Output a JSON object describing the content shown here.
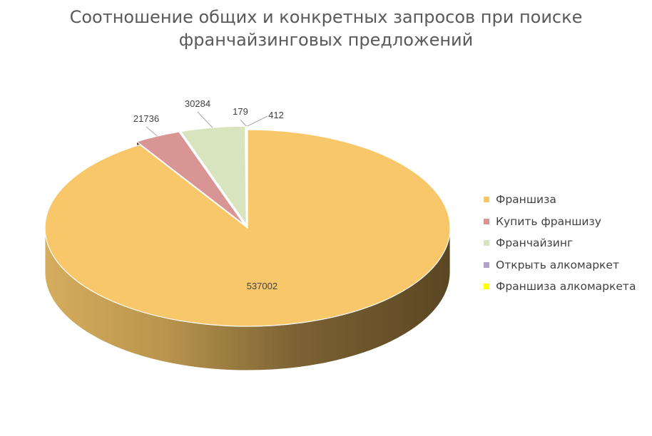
{
  "chart_data": {
    "type": "pie",
    "title_lines": [
      "Соотношение общих и конкретных запросов при поиске",
      "франчайзинговых предложений"
    ],
    "categories": [
      "Франшиза",
      "Купить франшизу",
      "Франчайзинг",
      "Открыть алкомаркет",
      "Франшиза алкомаркета"
    ],
    "values": [
      537002,
      21736,
      30284,
      179,
      412
    ],
    "data_labels": [
      "537002",
      "21736",
      "30284",
      "179",
      "412"
    ],
    "colors": [
      "#f8c76a",
      "#d99594",
      "#d7e4bd",
      "#b3a2c7",
      "#ffff00"
    ],
    "legend_position": "right",
    "style": "3d-pie-exploded"
  }
}
